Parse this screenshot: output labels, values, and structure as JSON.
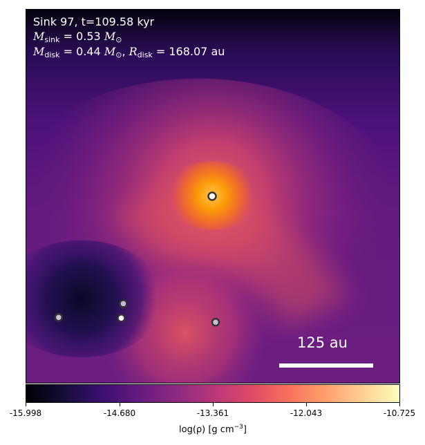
{
  "info": {
    "line1": "Sink 97, t=109.58 kyr",
    "mass_sink_value": "0.53",
    "mass_disk_value": "0.44",
    "radius_disk_value": "168.07",
    "unit_msun": "M",
    "unit_au": "au"
  },
  "scalebar": {
    "label": "125 au"
  },
  "colorbar": {
    "ticks": [
      "-15.998",
      "-14.680",
      "-13.361",
      "-12.043",
      "-10.725"
    ],
    "label_text": "log(ρ) [g cm",
    "label_exp": "−3",
    "label_close": "]"
  },
  "sinks": [
    {
      "id": "main",
      "fill": "#ffffff"
    },
    {
      "id": "s1",
      "fill": "#c8b8d8"
    },
    {
      "id": "s2",
      "fill": "#ffffff"
    },
    {
      "id": "s3",
      "fill": "#c8c8d0"
    },
    {
      "id": "s4",
      "fill": "#c8c0d0"
    }
  ],
  "colormap": "inferno"
}
